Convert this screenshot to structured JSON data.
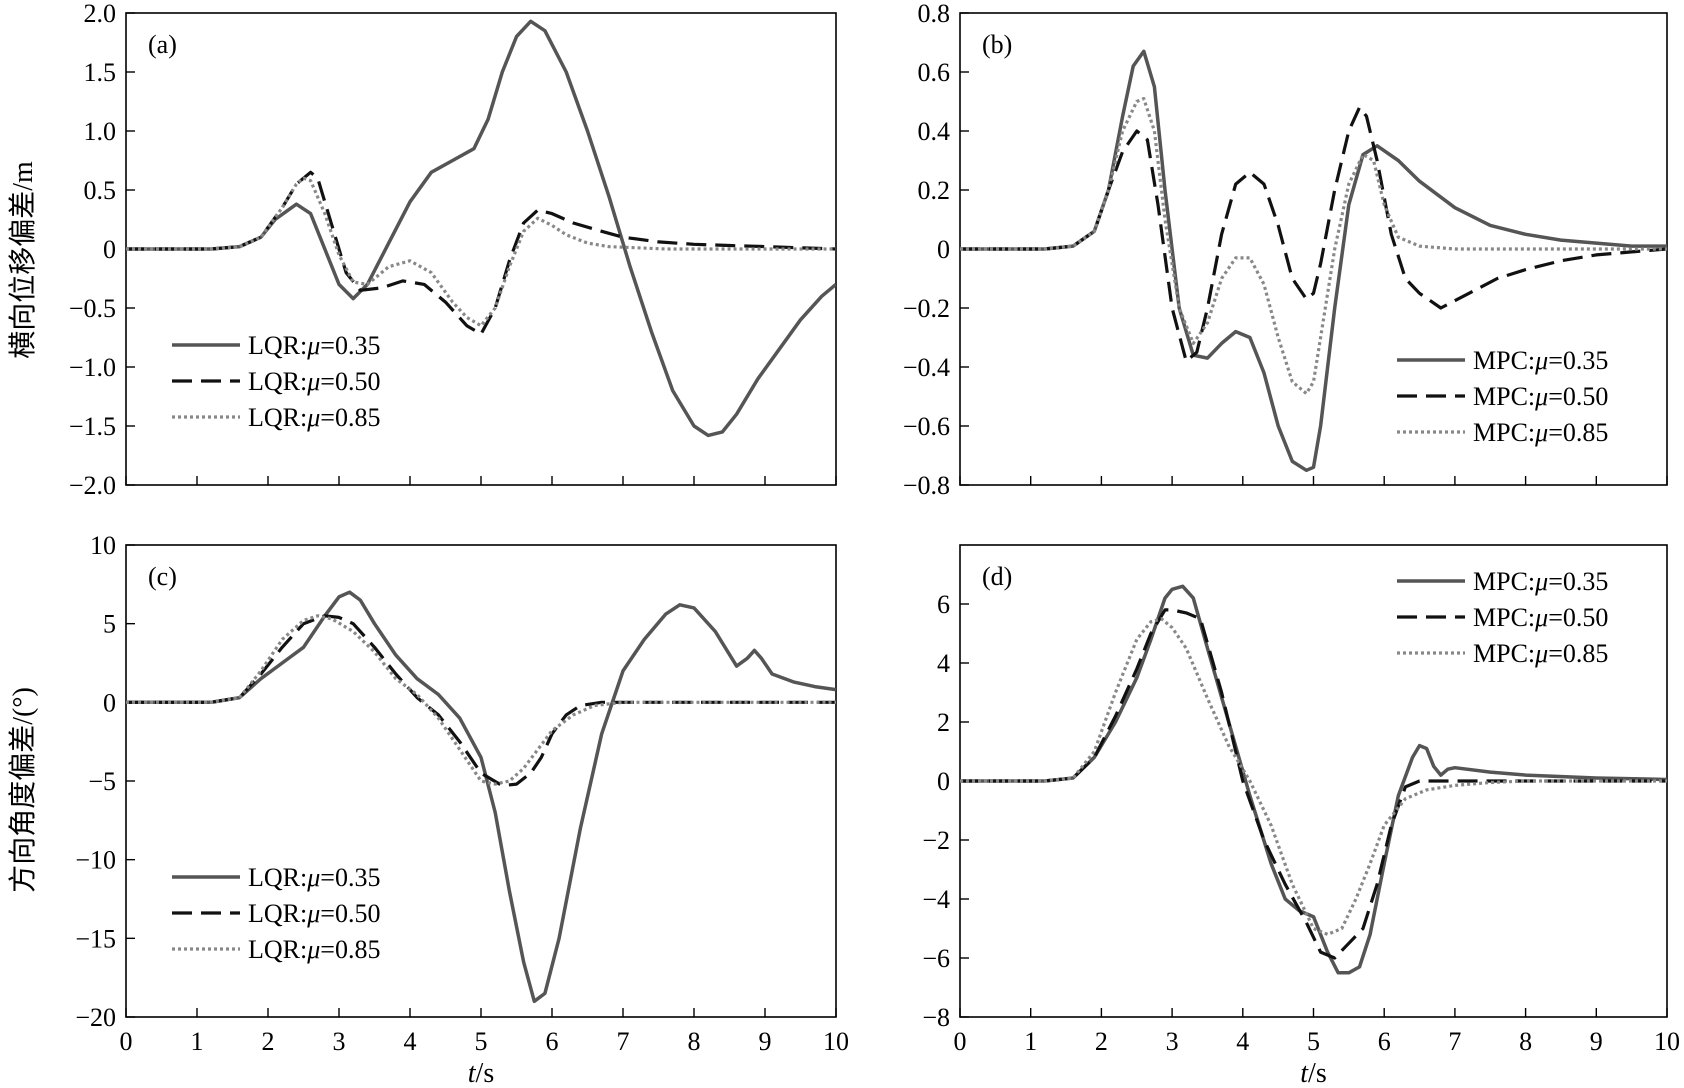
{
  "figure": {
    "ylabel_top": "横向位移偏差/m",
    "ylabel_bottom": "方向角度偏差/(°)"
  },
  "chart_data": [
    {
      "type": "line",
      "panel": "(a)",
      "xlabel_italic": "t",
      "xlabel_unit": "/s",
      "show_xticklabels": false,
      "show_xlabel": false,
      "xlim": [
        0,
        10
      ],
      "ylim": [
        -2.0,
        2.0
      ],
      "xticks": [
        0,
        1,
        2,
        3,
        4,
        5,
        6,
        7,
        8,
        9,
        10
      ],
      "yticks": [
        -2.0,
        -1.5,
        -1.0,
        -0.5,
        0,
        0.5,
        1.0,
        1.5,
        2.0
      ],
      "ytick_labels": [
        "−2.0",
        "−1.5",
        "−1.0",
        "−0.5",
        "0",
        "0.5",
        "1.0",
        "1.5",
        "2.0"
      ],
      "legend": "lower-left",
      "series": [
        {
          "name": "LQR:μ=0.35",
          "prefix": "LQR:",
          "mu": "μ",
          "suffix": "=0.35",
          "style": "solid",
          "color": "#555555",
          "x": [
            0,
            1.2,
            1.6,
            1.9,
            2.1,
            2.4,
            2.6,
            2.8,
            3.0,
            3.2,
            3.4,
            3.7,
            4.0,
            4.3,
            4.6,
            4.9,
            5.1,
            5.3,
            5.5,
            5.7,
            5.9,
            6.2,
            6.5,
            6.8,
            7.1,
            7.4,
            7.7,
            8.0,
            8.2,
            8.4,
            8.6,
            8.9,
            9.2,
            9.5,
            9.8,
            10.0
          ],
          "y": [
            0,
            0,
            0.02,
            0.1,
            0.25,
            0.38,
            0.3,
            0.0,
            -0.3,
            -0.42,
            -0.3,
            0.05,
            0.4,
            0.65,
            0.75,
            0.85,
            1.1,
            1.5,
            1.8,
            1.93,
            1.85,
            1.5,
            1.0,
            0.45,
            -0.15,
            -0.7,
            -1.2,
            -1.5,
            -1.58,
            -1.55,
            -1.4,
            -1.1,
            -0.85,
            -0.6,
            -0.4,
            -0.3
          ]
        },
        {
          "name": "LQR:μ=0.50",
          "prefix": "LQR:",
          "mu": "μ",
          "suffix": "=0.50",
          "style": "dashed",
          "color": "#111111",
          "x": [
            0,
            1.2,
            1.6,
            1.9,
            2.2,
            2.4,
            2.6,
            2.7,
            2.9,
            3.1,
            3.3,
            3.6,
            3.9,
            4.2,
            4.5,
            4.8,
            5.0,
            5.2,
            5.4,
            5.6,
            5.8,
            6.0,
            6.3,
            6.7,
            7.0,
            7.5,
            8.0,
            8.5,
            9.0,
            9.5,
            10.0
          ],
          "y": [
            0,
            0,
            0.02,
            0.1,
            0.35,
            0.55,
            0.65,
            0.6,
            0.2,
            -0.2,
            -0.35,
            -0.33,
            -0.27,
            -0.3,
            -0.45,
            -0.65,
            -0.72,
            -0.5,
            -0.1,
            0.22,
            0.33,
            0.3,
            0.22,
            0.15,
            0.1,
            0.06,
            0.04,
            0.03,
            0.02,
            0.01,
            0.0
          ]
        },
        {
          "name": "LQR:μ=0.85",
          "prefix": "LQR:",
          "mu": "μ",
          "suffix": "=0.85",
          "style": "dotted",
          "color": "#888888",
          "x": [
            0,
            1.2,
            1.6,
            1.9,
            2.2,
            2.4,
            2.5,
            2.6,
            2.8,
            3.0,
            3.2,
            3.4,
            3.7,
            4.0,
            4.3,
            4.6,
            4.8,
            5.0,
            5.2,
            5.4,
            5.6,
            5.8,
            6.0,
            6.2,
            6.5,
            6.8,
            7.2,
            7.6,
            8.0,
            9.0,
            10.0
          ],
          "y": [
            0,
            0,
            0.02,
            0.1,
            0.35,
            0.55,
            0.6,
            0.58,
            0.3,
            -0.05,
            -0.28,
            -0.3,
            -0.15,
            -0.1,
            -0.2,
            -0.45,
            -0.58,
            -0.65,
            -0.5,
            -0.15,
            0.15,
            0.26,
            0.2,
            0.12,
            0.05,
            0.02,
            0.01,
            0.0,
            0.0,
            0.0,
            0.0
          ]
        }
      ]
    },
    {
      "type": "line",
      "panel": "(b)",
      "xlabel_italic": "t",
      "xlabel_unit": "/s",
      "show_xticklabels": false,
      "show_xlabel": false,
      "xlim": [
        0,
        10
      ],
      "ylim": [
        -0.8,
        0.8
      ],
      "xticks": [
        0,
        1,
        2,
        3,
        4,
        5,
        6,
        7,
        8,
        9,
        10
      ],
      "yticks": [
        -0.8,
        -0.6,
        -0.4,
        -0.2,
        0,
        0.2,
        0.4,
        0.6,
        0.8
      ],
      "ytick_labels": [
        "−0.8",
        "−0.6",
        "−0.4",
        "−0.2",
        "0",
        "0.2",
        "0.4",
        "0.6",
        "0.8"
      ],
      "legend": "lower-right",
      "series": [
        {
          "name": "MPC:μ=0.35",
          "prefix": "MPC:",
          "mu": "μ",
          "suffix": "=0.35",
          "style": "solid",
          "color": "#555555",
          "x": [
            0,
            1.2,
            1.6,
            1.9,
            2.1,
            2.3,
            2.45,
            2.6,
            2.75,
            2.9,
            3.1,
            3.3,
            3.5,
            3.7,
            3.9,
            4.1,
            4.3,
            4.5,
            4.7,
            4.9,
            5.0,
            5.1,
            5.3,
            5.5,
            5.7,
            5.9,
            6.2,
            6.5,
            7.0,
            7.5,
            8.0,
            8.5,
            9.0,
            9.5,
            10.0
          ],
          "y": [
            0,
            0,
            0.01,
            0.06,
            0.2,
            0.45,
            0.62,
            0.67,
            0.55,
            0.2,
            -0.2,
            -0.36,
            -0.37,
            -0.32,
            -0.28,
            -0.3,
            -0.42,
            -0.6,
            -0.72,
            -0.75,
            -0.74,
            -0.6,
            -0.2,
            0.15,
            0.32,
            0.35,
            0.3,
            0.23,
            0.14,
            0.08,
            0.05,
            0.03,
            0.02,
            0.01,
            0.01
          ]
        },
        {
          "name": "MPC:μ=0.50",
          "prefix": "MPC:",
          "mu": "μ",
          "suffix": "=0.50",
          "style": "dashed",
          "color": "#111111",
          "x": [
            0,
            1.2,
            1.6,
            1.9,
            2.1,
            2.3,
            2.5,
            2.65,
            2.8,
            3.0,
            3.2,
            3.35,
            3.5,
            3.7,
            3.9,
            4.1,
            4.3,
            4.5,
            4.7,
            4.9,
            5.0,
            5.1,
            5.3,
            5.5,
            5.65,
            5.75,
            5.9,
            6.1,
            6.3,
            6.5,
            6.8,
            7.2,
            7.6,
            8.0,
            8.5,
            9.0,
            9.5,
            10.0
          ],
          "y": [
            0,
            0,
            0.01,
            0.06,
            0.2,
            0.33,
            0.4,
            0.37,
            0.15,
            -0.2,
            -0.38,
            -0.35,
            -0.2,
            0.05,
            0.22,
            0.26,
            0.22,
            0.08,
            -0.1,
            -0.17,
            -0.15,
            -0.05,
            0.2,
            0.4,
            0.48,
            0.45,
            0.3,
            0.05,
            -0.1,
            -0.15,
            -0.2,
            -0.15,
            -0.1,
            -0.07,
            -0.04,
            -0.02,
            -0.01,
            0.0
          ]
        },
        {
          "name": "MPC:μ=0.85",
          "prefix": "MPC:",
          "mu": "μ",
          "suffix": "=0.85",
          "style": "dotted",
          "color": "#888888",
          "x": [
            0,
            1.2,
            1.6,
            1.9,
            2.1,
            2.3,
            2.5,
            2.6,
            2.75,
            2.9,
            3.1,
            3.3,
            3.5,
            3.7,
            3.9,
            4.1,
            4.3,
            4.5,
            4.7,
            4.9,
            5.0,
            5.1,
            5.3,
            5.5,
            5.7,
            5.85,
            6.0,
            6.2,
            6.5,
            7.0,
            8.0,
            9.0,
            10.0
          ],
          "y": [
            0,
            0,
            0.01,
            0.06,
            0.2,
            0.4,
            0.5,
            0.51,
            0.4,
            0.1,
            -0.2,
            -0.32,
            -0.25,
            -0.1,
            -0.03,
            -0.03,
            -0.12,
            -0.3,
            -0.45,
            -0.49,
            -0.45,
            -0.3,
            0.0,
            0.22,
            0.32,
            0.3,
            0.15,
            0.04,
            0.01,
            0.0,
            0.0,
            0.0,
            0.0
          ]
        }
      ]
    },
    {
      "type": "line",
      "panel": "(c)",
      "xlabel_italic": "t",
      "xlabel_unit": "/s",
      "show_xticklabels": true,
      "show_xlabel": true,
      "xlim": [
        0,
        10
      ],
      "ylim": [
        -20,
        10
      ],
      "xticks": [
        0,
        1,
        2,
        3,
        4,
        5,
        6,
        7,
        8,
        9,
        10
      ],
      "yticks": [
        -20,
        -15,
        -10,
        -5,
        0,
        5,
        10
      ],
      "ytick_labels": [
        "−20",
        "−15",
        "−10",
        "−5",
        "0",
        "5",
        "10"
      ],
      "legend": "lower-left",
      "series": [
        {
          "name": "LQR:μ=0.35",
          "prefix": "LQR:",
          "mu": "μ",
          "suffix": "=0.35",
          "style": "solid",
          "color": "#555555",
          "x": [
            0,
            1.2,
            1.6,
            1.9,
            2.2,
            2.5,
            2.8,
            3.0,
            3.15,
            3.3,
            3.5,
            3.8,
            4.1,
            4.4,
            4.7,
            5.0,
            5.2,
            5.4,
            5.6,
            5.75,
            5.9,
            6.1,
            6.4,
            6.7,
            7.0,
            7.3,
            7.6,
            7.8,
            8.0,
            8.3,
            8.6,
            8.75,
            8.85,
            8.95,
            9.1,
            9.4,
            9.7,
            10.0
          ],
          "y": [
            0,
            0,
            0.3,
            1.5,
            2.5,
            3.5,
            5.5,
            6.7,
            7.0,
            6.5,
            5.0,
            3.0,
            1.5,
            0.5,
            -1.0,
            -3.5,
            -7.0,
            -12.0,
            -16.5,
            -19.0,
            -18.5,
            -15.0,
            -8.0,
            -2.0,
            2.0,
            4.0,
            5.6,
            6.2,
            6.0,
            4.5,
            2.3,
            2.8,
            3.3,
            2.8,
            1.8,
            1.3,
            1.0,
            0.8
          ]
        },
        {
          "name": "LQR:μ=0.50",
          "prefix": "LQR:",
          "mu": "μ",
          "suffix": "=0.50",
          "style": "dashed",
          "color": "#111111",
          "x": [
            0,
            1.2,
            1.6,
            1.9,
            2.2,
            2.5,
            2.8,
            3.0,
            3.2,
            3.5,
            3.8,
            4.1,
            4.4,
            4.7,
            5.0,
            5.3,
            5.5,
            5.7,
            5.85,
            6.0,
            6.2,
            6.4,
            6.7,
            7.0,
            7.5,
            8.0,
            9.0,
            10.0
          ],
          "y": [
            0,
            0,
            0.3,
            1.8,
            3.5,
            5.0,
            5.5,
            5.4,
            5.0,
            3.5,
            1.8,
            0.3,
            -0.8,
            -2.5,
            -4.5,
            -5.3,
            -5.2,
            -4.5,
            -3.5,
            -2.0,
            -0.8,
            -0.2,
            0.0,
            0.0,
            0.0,
            0.0,
            0.0,
            0.0
          ]
        },
        {
          "name": "LQR:μ=0.85",
          "prefix": "LQR:",
          "mu": "μ",
          "suffix": "=0.85",
          "style": "dotted",
          "color": "#888888",
          "x": [
            0,
            1.2,
            1.6,
            1.9,
            2.2,
            2.5,
            2.7,
            2.9,
            3.2,
            3.5,
            3.8,
            4.1,
            4.4,
            4.7,
            5.0,
            5.2,
            5.4,
            5.6,
            5.8,
            6.0,
            6.3,
            6.6,
            7.0,
            7.5,
            8.0,
            9.0,
            10.0
          ],
          "y": [
            0,
            0,
            0.3,
            2.0,
            4.0,
            5.2,
            5.5,
            5.3,
            4.5,
            3.2,
            1.5,
            0.5,
            -1.0,
            -3.0,
            -5.0,
            -5.2,
            -5.0,
            -4.2,
            -3.0,
            -1.8,
            -0.8,
            -0.2,
            0.0,
            0.0,
            0.0,
            0.0,
            0.0
          ]
        }
      ]
    },
    {
      "type": "line",
      "panel": "(d)",
      "xlabel_italic": "t",
      "xlabel_unit": "/s",
      "show_xticklabels": true,
      "show_xlabel": true,
      "xlim": [
        0,
        10
      ],
      "ylim": [
        -8,
        8
      ],
      "xticks": [
        0,
        1,
        2,
        3,
        4,
        5,
        6,
        7,
        8,
        9,
        10
      ],
      "yticks": [
        -8,
        -6,
        -4,
        -2,
        0,
        2,
        4,
        6
      ],
      "ytick_labels": [
        "−8",
        "−6",
        "−4",
        "−2",
        "0",
        "2",
        "4",
        "6"
      ],
      "legend": "upper-right",
      "series": [
        {
          "name": "MPC:μ=0.35",
          "prefix": "MPC:",
          "mu": "μ",
          "suffix": "=0.35",
          "style": "solid",
          "color": "#555555",
          "x": [
            0,
            1.2,
            1.6,
            1.9,
            2.2,
            2.5,
            2.7,
            2.9,
            3.0,
            3.15,
            3.3,
            3.5,
            3.8,
            4.1,
            4.4,
            4.6,
            4.8,
            5.0,
            5.2,
            5.35,
            5.5,
            5.65,
            5.8,
            6.0,
            6.2,
            6.4,
            6.5,
            6.6,
            6.7,
            6.8,
            6.9,
            7.0,
            7.5,
            8.0,
            9.0,
            10.0
          ],
          "y": [
            0,
            0,
            0.1,
            0.8,
            2.0,
            3.5,
            4.8,
            6.2,
            6.5,
            6.6,
            6.2,
            4.5,
            2.0,
            -0.5,
            -2.8,
            -4.0,
            -4.4,
            -4.6,
            -5.8,
            -6.5,
            -6.5,
            -6.3,
            -5.2,
            -2.8,
            -0.5,
            0.8,
            1.2,
            1.1,
            0.5,
            0.2,
            0.4,
            0.45,
            0.3,
            0.2,
            0.1,
            0.05
          ]
        },
        {
          "name": "MPC:μ=0.50",
          "prefix": "MPC:",
          "mu": "μ",
          "suffix": "=0.50",
          "style": "dashed",
          "color": "#111111",
          "x": [
            0,
            1.2,
            1.6,
            1.9,
            2.2,
            2.5,
            2.7,
            2.9,
            3.0,
            3.2,
            3.4,
            3.7,
            4.0,
            4.3,
            4.6,
            4.9,
            5.1,
            5.3,
            5.5,
            5.7,
            5.9,
            6.1,
            6.3,
            6.5,
            6.7,
            7.0,
            8.0,
            9.0,
            10.0
          ],
          "y": [
            0,
            0,
            0.1,
            0.8,
            2.2,
            3.8,
            5.0,
            5.8,
            5.8,
            5.7,
            5.5,
            3.0,
            0.0,
            -2.0,
            -3.5,
            -4.8,
            -5.8,
            -6.0,
            -5.5,
            -5.0,
            -3.5,
            -1.5,
            -0.2,
            0.0,
            0.0,
            0.0,
            0.0,
            0.0,
            0.0
          ]
        },
        {
          "name": "MPC:μ=0.85",
          "prefix": "MPC:",
          "mu": "μ",
          "suffix": "=0.85",
          "style": "dotted",
          "color": "#888888",
          "x": [
            0,
            1.2,
            1.6,
            1.9,
            2.2,
            2.5,
            2.7,
            2.85,
            3.0,
            3.2,
            3.5,
            3.8,
            4.1,
            4.4,
            4.7,
            5.0,
            5.2,
            5.4,
            5.6,
            5.8,
            6.0,
            6.3,
            6.6,
            7.0,
            7.5,
            8.0,
            9.0,
            10.0
          ],
          "y": [
            0,
            0,
            0.1,
            1.0,
            3.0,
            4.8,
            5.4,
            5.5,
            5.2,
            4.5,
            2.8,
            1.2,
            0.0,
            -1.5,
            -3.5,
            -5.0,
            -5.2,
            -5.0,
            -4.0,
            -2.8,
            -1.5,
            -0.6,
            -0.3,
            -0.15,
            -0.05,
            0.0,
            0.0,
            0.0
          ]
        }
      ]
    }
  ]
}
